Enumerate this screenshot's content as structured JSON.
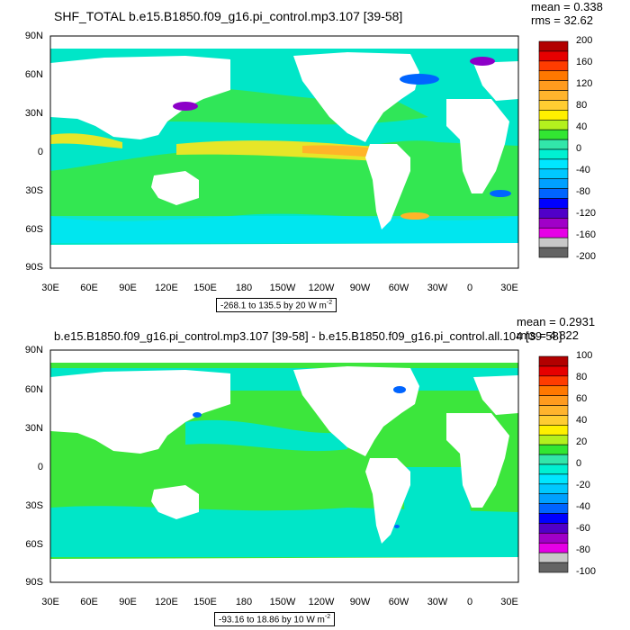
{
  "panels": [
    {
      "title": "SHF_TOTAL b.e15.B1850.f09_g16.pi_control.mp3.107 [39-58]",
      "mean": "mean = 0.338",
      "rms": "rms = 32.62",
      "range_text": "-268.1 to 135.5 by 20",
      "units_text": "W m",
      "units_exp": "-2",
      "colorbar_labels": [
        "200",
        "160",
        "120",
        "80",
        "40",
        "0",
        "-40",
        "-80",
        "-120",
        "-160",
        "-200"
      ],
      "colorbar_colors": [
        "#b20000",
        "#e60000",
        "#ff3c00",
        "#ff7800",
        "#ff9b1e",
        "#ffb42d",
        "#ffcd32",
        "#fff000",
        "#b4f01e",
        "#32e632",
        "#32e6aa",
        "#00f0d2",
        "#00e6ff",
        "#00c8ff",
        "#00a0ff",
        "#0064ff",
        "#0000ff",
        "#5000c8",
        "#a000c8",
        "#e600e6",
        "#c8c8c8",
        "#646464"
      ]
    },
    {
      "title": "b.e15.B1850.f09_g16.pi_control.mp3.107 [39-58] - b.e15.B1850.f09_g16.pi_control.all.104 [39-58]",
      "mean": "mean = 0.2931",
      "rms": "rms = 4.822",
      "range_text": "-93.16 to 18.86 by 10",
      "units_text": "W m",
      "units_exp": "-2",
      "colorbar_labels": [
        "100",
        "80",
        "60",
        "40",
        "20",
        "0",
        "-20",
        "-40",
        "-60",
        "-80",
        "-100"
      ],
      "colorbar_colors": [
        "#b20000",
        "#e60000",
        "#ff3c00",
        "#ff7800",
        "#ff9b1e",
        "#ffb42d",
        "#ffcd32",
        "#fff000",
        "#b4f01e",
        "#32e632",
        "#32e6aa",
        "#00f0d2",
        "#00e6ff",
        "#00c8ff",
        "#00a0ff",
        "#0064ff",
        "#0000ff",
        "#5000c8",
        "#a000c8",
        "#e600e6",
        "#c8c8c8",
        "#646464"
      ]
    }
  ],
  "y_ticks": [
    "90N",
    "60N",
    "30N",
    "0",
    "30S",
    "60S",
    "90S"
  ],
  "x_ticks": [
    "30E",
    "60E",
    "90E",
    "120E",
    "150E",
    "180",
    "150W",
    "120W",
    "90W",
    "60W",
    "30W",
    "0",
    "30E"
  ],
  "map_colors": {
    "ocean_main": "#00e6c8",
    "ocean_green": "#3ce63c",
    "ocean_yellow": "#e6e628",
    "ocean_orange": "#ffb428",
    "ocean_cyan": "#00e6ff",
    "ocean_blue": "#0064ff",
    "ocean_purple": "#8c00c8",
    "land": "#ffffff"
  }
}
